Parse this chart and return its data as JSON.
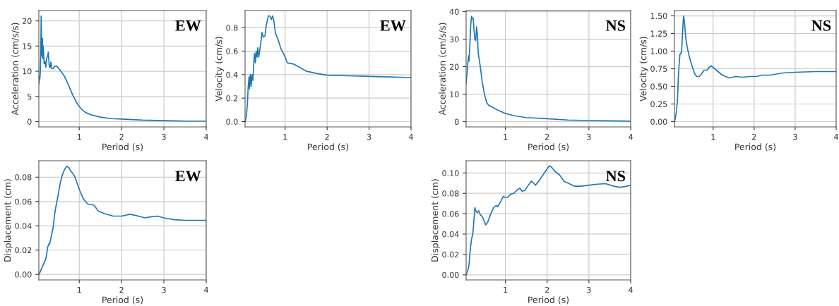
{
  "chart_data": [
    {
      "type": "line",
      "xlabel": "Period (s)",
      "ylabel": "Acceleration (cm/s/s)",
      "annotations": [
        "EW"
      ],
      "grid": true,
      "xlim": [
        0.045,
        4
      ],
      "xticks": [
        1,
        2,
        3,
        4
      ],
      "ylim": [
        -1.05,
        22.05
      ],
      "yticks": [
        0,
        5,
        10,
        15,
        20
      ],
      "series": [
        {
          "color": "#1f77b4",
          "x": [
            0.05,
            0.06,
            0.07,
            0.08,
            0.09,
            0.1,
            0.11,
            0.12,
            0.13,
            0.14,
            0.15,
            0.17,
            0.19,
            0.21,
            0.23,
            0.25,
            0.27,
            0.29,
            0.31,
            0.33,
            0.35,
            0.38,
            0.42,
            0.47,
            0.55,
            0.65,
            0.75,
            0.85,
            0.95,
            1.05,
            1.15,
            1.3,
            1.5,
            1.75,
            2,
            2.5,
            3,
            3.5,
            4
          ],
          "values": [
            7.5,
            9,
            8.5,
            10,
            13,
            21,
            15,
            13,
            16.5,
            12.5,
            15,
            11.5,
            12,
            10.8,
            12.5,
            13,
            13.8,
            11,
            10.7,
            11.8,
            10.5,
            10.5,
            11,
            11,
            10.2,
            9,
            7.2,
            5.2,
            3.6,
            2.5,
            1.8,
            1.3,
            0.9,
            0.6,
            0.5,
            0.3,
            0.2,
            0.1,
            0.1
          ]
        }
      ]
    },
    {
      "type": "line",
      "xlabel": "Period (s)",
      "ylabel": "Velocity (cm/s)",
      "annotations": [
        "EW"
      ],
      "grid": true,
      "xlim": [
        0.045,
        4
      ],
      "xticks": [
        1,
        2,
        3,
        4
      ],
      "ylim": [
        -0.045,
        0.945
      ],
      "yticks": [
        {
          "value": 0,
          "label": "0.0"
        },
        0.2,
        0.4,
        0.6,
        0.8
      ],
      "series": [
        {
          "color": "#1f77b4",
          "x": [
            0.05,
            0.08,
            0.1,
            0.12,
            0.14,
            0.15,
            0.17,
            0.19,
            0.21,
            0.23,
            0.25,
            0.27,
            0.29,
            0.31,
            0.33,
            0.35,
            0.37,
            0.4,
            0.43,
            0.45,
            0.48,
            0.52,
            0.55,
            0.6,
            0.63,
            0.67,
            0.7,
            0.73,
            0.77,
            0.83,
            0.9,
            1,
            1.05,
            1.2,
            1.35,
            1.5,
            1.75,
            2,
            2.5,
            3,
            3.5,
            4
          ],
          "values": [
            0.0,
            0.06,
            0.15,
            0.3,
            0.38,
            0.28,
            0.4,
            0.3,
            0.4,
            0.35,
            0.48,
            0.58,
            0.5,
            0.6,
            0.55,
            0.63,
            0.55,
            0.62,
            0.7,
            0.76,
            0.72,
            0.73,
            0.82,
            0.9,
            0.9,
            0.87,
            0.9,
            0.86,
            0.75,
            0.7,
            0.62,
            0.55,
            0.5,
            0.49,
            0.46,
            0.43,
            0.41,
            0.395,
            0.39,
            0.385,
            0.38,
            0.375
          ]
        }
      ]
    },
    {
      "type": "line",
      "xlabel": "Period (s)",
      "ylabel": "Acceleration (cm/s/s)",
      "annotations": [
        "NS"
      ],
      "grid": true,
      "xlim": [
        0.06,
        4
      ],
      "xticks": [
        1,
        2,
        3,
        4
      ],
      "ylim": [
        -1.9,
        40.4
      ],
      "yticks": [
        0,
        10,
        20,
        30,
        40
      ],
      "series": [
        {
          "color": "#1f77b4",
          "x": [
            0.06,
            0.08,
            0.1,
            0.12,
            0.13,
            0.15,
            0.17,
            0.19,
            0.21,
            0.23,
            0.25,
            0.27,
            0.29,
            0.31,
            0.33,
            0.35,
            0.4,
            0.45,
            0.5,
            0.55,
            0.6,
            0.7,
            0.8,
            0.9,
            1,
            1.2,
            1.5,
            2,
            2.5,
            3,
            3.5,
            4
          ],
          "values": [
            14,
            17,
            21,
            24,
            22,
            28,
            35,
            38.3,
            37.5,
            37.5,
            33,
            30,
            29.5,
            34.5,
            32,
            25,
            20,
            14,
            10,
            7,
            6,
            5.2,
            4.3,
            3.7,
            3,
            2.2,
            1.5,
            1.1,
            0.6,
            0.4,
            0.3,
            0.2
          ]
        }
      ]
    },
    {
      "type": "line",
      "xlabel": "Period (s)",
      "ylabel": "Velocity (cm/s)",
      "annotations": [
        "NS"
      ],
      "grid": true,
      "xlim": [
        0.057,
        4
      ],
      "xticks": [
        1,
        2,
        3,
        4
      ],
      "ylim": [
        -0.075,
        1.575
      ],
      "yticks": [
        {
          "value": 0,
          "label": "0.00"
        },
        {
          "value": 0.25,
          "label": "0.25"
        },
        {
          "value": 0.5,
          "label": "0.50"
        },
        {
          "value": 0.75,
          "label": "0.75"
        },
        {
          "value": 1,
          "label": "1.00"
        },
        {
          "value": 1.25,
          "label": "1.25"
        },
        {
          "value": 1.5,
          "label": "1.50"
        }
      ],
      "series": [
        {
          "color": "#1f77b4",
          "x": [
            0.06,
            0.08,
            0.1,
            0.13,
            0.15,
            0.17,
            0.19,
            0.21,
            0.23,
            0.25,
            0.27,
            0.28,
            0.3,
            0.33,
            0.37,
            0.42,
            0.48,
            0.55,
            0.6,
            0.66,
            0.72,
            0.78,
            0.85,
            0.9,
            0.95,
            1,
            1.1,
            1.2,
            1.3,
            1.4,
            1.55,
            1.7,
            1.9,
            2.05,
            2.2,
            2.4,
            2.7,
            3,
            3.5,
            4
          ],
          "values": [
            0.0,
            0.05,
            0.12,
            0.3,
            0.6,
            0.8,
            0.95,
            0.97,
            0.98,
            1.2,
            1.42,
            1.5,
            1.42,
            1.2,
            1.05,
            0.92,
            0.8,
            0.68,
            0.64,
            0.64,
            0.68,
            0.73,
            0.73,
            0.77,
            0.79,
            0.77,
            0.72,
            0.67,
            0.64,
            0.62,
            0.64,
            0.63,
            0.64,
            0.64,
            0.66,
            0.66,
            0.69,
            0.7,
            0.71,
            0.71
          ]
        }
      ]
    },
    {
      "type": "line",
      "xlabel": "Period (s)",
      "ylabel": "Displacement (cm)",
      "annotations": [
        "EW"
      ],
      "grid": true,
      "xlim": [
        0.045,
        4
      ],
      "xticks": [
        1,
        2,
        3,
        4
      ],
      "ylim": [
        -0.0045,
        0.0935
      ],
      "yticks": [
        {
          "value": 0,
          "label": "0.00"
        },
        {
          "value": 0.02,
          "label": "0.02"
        },
        {
          "value": 0.04,
          "label": "0.04"
        },
        {
          "value": 0.06,
          "label": "0.06"
        },
        {
          "value": 0.08,
          "label": "0.08"
        }
      ],
      "series": [
        {
          "color": "#1f77b4",
          "x": [
            0.05,
            0.1,
            0.15,
            0.2,
            0.23,
            0.25,
            0.28,
            0.3,
            0.33,
            0.38,
            0.42,
            0.46,
            0.5,
            0.55,
            0.6,
            0.65,
            0.7,
            0.75,
            0.8,
            0.85,
            0.9,
            0.95,
            1,
            1.1,
            1.2,
            1.35,
            1.45,
            1.6,
            1.8,
            2,
            2.2,
            2.4,
            2.55,
            2.7,
            2.85,
            3,
            3.25,
            3.5,
            4
          ],
          "values": [
            0.0,
            0.004,
            0.008,
            0.012,
            0.016,
            0.022,
            0.025,
            0.025,
            0.03,
            0.038,
            0.05,
            0.058,
            0.065,
            0.075,
            0.082,
            0.086,
            0.089,
            0.088,
            0.085,
            0.083,
            0.08,
            0.075,
            0.07,
            0.062,
            0.058,
            0.057,
            0.052,
            0.05,
            0.048,
            0.048,
            0.0495,
            0.048,
            0.0465,
            0.0475,
            0.048,
            0.0465,
            0.045,
            0.0445,
            0.0445
          ]
        }
      ]
    },
    {
      "type": "line",
      "xlabel": "Period (s)",
      "ylabel": "Displacement (cm)",
      "annotations": [
        "NS"
      ],
      "grid": true,
      "xlim": [
        0.06,
        4
      ],
      "xticks": [
        1,
        2,
        3,
        4
      ],
      "ylim": [
        -0.005,
        0.112
      ],
      "yticks": [
        {
          "value": 0,
          "label": "0.00"
        },
        {
          "value": 0.02,
          "label": "0.02"
        },
        {
          "value": 0.04,
          "label": "0.04"
        },
        {
          "value": 0.06,
          "label": "0.06"
        },
        {
          "value": 0.08,
          "label": "0.08"
        },
        {
          "value": 0.1,
          "label": "0.10"
        }
      ],
      "series": [
        {
          "color": "#1f77b4",
          "x": [
            0.06,
            0.1,
            0.13,
            0.16,
            0.19,
            0.22,
            0.25,
            0.27,
            0.3,
            0.33,
            0.36,
            0.4,
            0.45,
            0.5,
            0.53,
            0.58,
            0.65,
            0.72,
            0.78,
            0.82,
            0.9,
            0.95,
            1,
            1.05,
            1.12,
            1.2,
            1.3,
            1.35,
            1.4,
            1.47,
            1.55,
            1.62,
            1.68,
            1.72,
            1.8,
            1.9,
            2,
            2.05,
            2.1,
            2.2,
            2.3,
            2.4,
            2.5,
            2.65,
            2.8,
            3,
            3.2,
            3.4,
            3.6,
            3.75,
            3.9,
            4
          ],
          "values": [
            0.0,
            0.004,
            0.01,
            0.025,
            0.035,
            0.04,
            0.055,
            0.066,
            0.062,
            0.061,
            0.063,
            0.059,
            0.057,
            0.052,
            0.049,
            0.052,
            0.06,
            0.066,
            0.068,
            0.067,
            0.073,
            0.077,
            0.076,
            0.076,
            0.079,
            0.08,
            0.084,
            0.085,
            0.082,
            0.083,
            0.088,
            0.092,
            0.09,
            0.088,
            0.092,
            0.098,
            0.104,
            0.107,
            0.106,
            0.101,
            0.098,
            0.092,
            0.09,
            0.087,
            0.087,
            0.088,
            0.089,
            0.0895,
            0.087,
            0.086,
            0.087,
            0.088
          ]
        }
      ]
    }
  ]
}
